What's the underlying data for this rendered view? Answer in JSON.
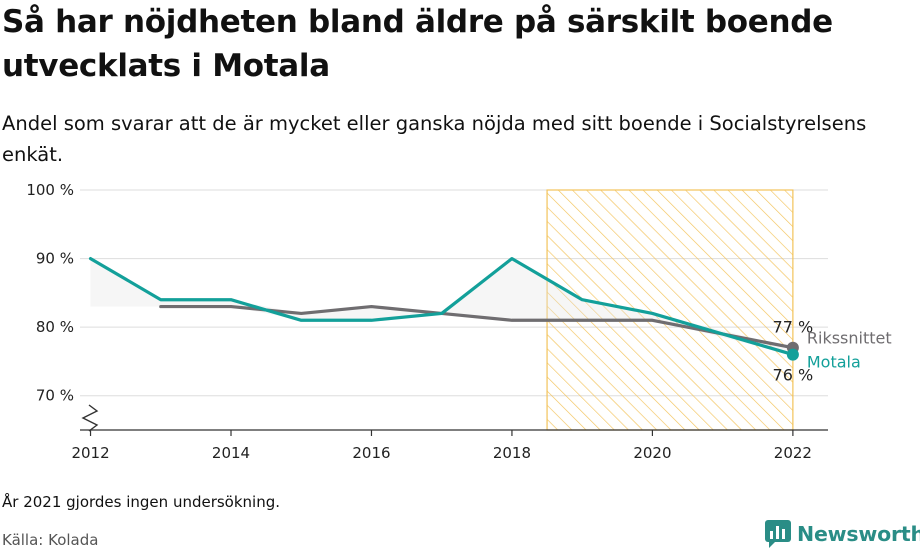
{
  "title": "Så har nöjdheten bland äldre på särskilt boende utvecklats i Motala",
  "subtitle": "Andel som svarar att de är mycket eller ganska nöjda med sitt boende i Socialstyrelsens enkät.",
  "note": "År 2021 gjordes ingen undersökning.",
  "source": "Källa: Kolada",
  "brand": {
    "name": "Newsworthy",
    "icon": "newsworthy-logo-icon",
    "color": "#2a8d86"
  },
  "chart_data": {
    "type": "line",
    "x": [
      2012,
      2013,
      2014,
      2015,
      2016,
      2017,
      2018,
      2019,
      2020,
      2022
    ],
    "xticks": [
      2012,
      2014,
      2016,
      2018,
      2020,
      2022
    ],
    "xlim": [
      2011.85,
      2022.5
    ],
    "ylim": [
      65,
      100
    ],
    "yticks": [
      70,
      80,
      90,
      100
    ],
    "ytick_labels": [
      "70 %",
      "80 %",
      "90 %",
      "100 %"
    ],
    "axis_break": true,
    "grid": true,
    "highlight_range": [
      2018.5,
      2022
    ],
    "highlight_color": "#f3c35a",
    "series": [
      {
        "name": "Rikssnittet",
        "color": "#6f6d70",
        "values": [
          null,
          83,
          83,
          82,
          83,
          82,
          81,
          81,
          81,
          77
        ],
        "end_label": "77 %"
      },
      {
        "name": "Motala",
        "color": "#13a09a",
        "values": [
          90,
          84,
          84,
          81,
          81,
          82,
          90,
          84,
          82,
          76
        ],
        "end_label": "76 %"
      }
    ]
  }
}
